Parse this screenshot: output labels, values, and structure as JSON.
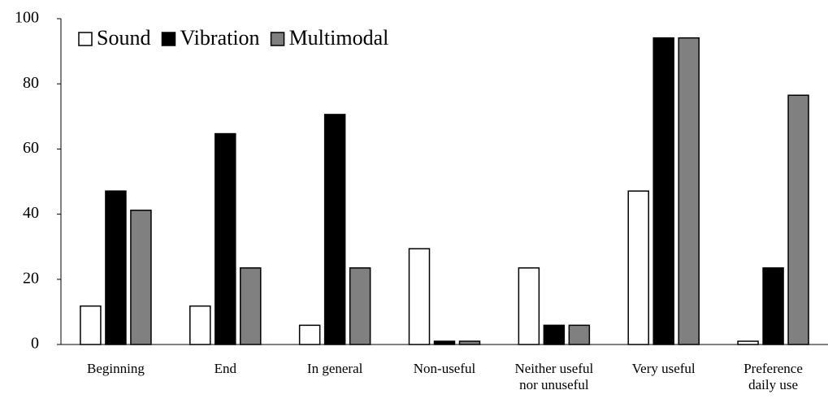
{
  "chart_data": {
    "type": "bar",
    "categories": [
      "Beginning",
      "End",
      "In general",
      "Non-useful",
      "Neither useful nor unuseful",
      "Very useful",
      "Preference daily use"
    ],
    "series": [
      {
        "name": "Sound",
        "color": "#ffffff",
        "values": [
          11.8,
          11.8,
          5.9,
          29.4,
          23.5,
          47.1,
          1
        ]
      },
      {
        "name": "Vibration",
        "color": "#000000",
        "values": [
          47.1,
          64.7,
          70.6,
          1,
          5.9,
          94.1,
          23.5
        ]
      },
      {
        "name": "Multimodal",
        "color": "#808080",
        "values": [
          41.2,
          23.5,
          23.5,
          1,
          5.9,
          94.1,
          76.5
        ]
      }
    ],
    "ylim": [
      0,
      100
    ],
    "yticks": [
      0,
      20,
      40,
      60,
      80,
      100
    ],
    "legend": "top-left"
  }
}
